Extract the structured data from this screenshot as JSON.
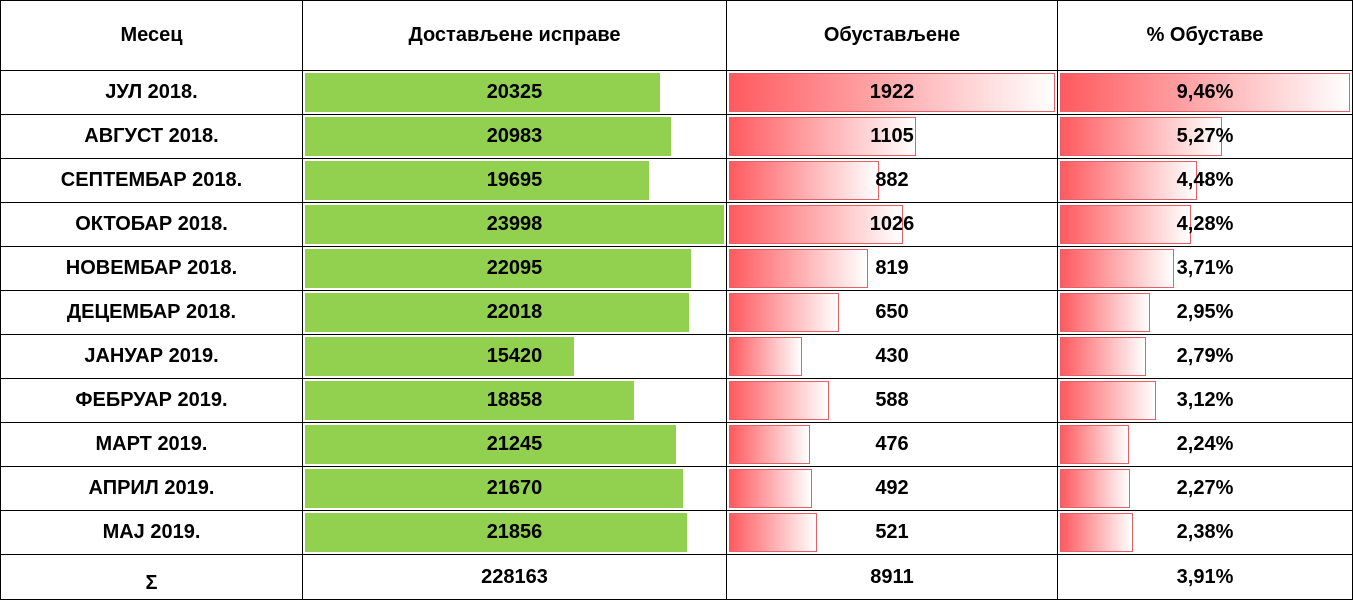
{
  "table": {
    "headers": [
      "Месец",
      "Достављене исправе",
      "Обустављене",
      "% Обуставе"
    ],
    "rows": [
      {
        "month": "ЈУЛ 2018.",
        "delivered": 20325,
        "suspended": 1922,
        "percent": {
          "value": 9.46,
          "label": "9,46%"
        }
      },
      {
        "month": "АВГУСТ 2018.",
        "delivered": 20983,
        "suspended": 1105,
        "percent": {
          "value": 5.27,
          "label": "5,27%"
        }
      },
      {
        "month": "СЕПТЕМБАР 2018.",
        "delivered": 19695,
        "suspended": 882,
        "percent": {
          "value": 4.48,
          "label": "4,48%"
        }
      },
      {
        "month": "ОКТОБАР 2018.",
        "delivered": 23998,
        "suspended": 1026,
        "percent": {
          "value": 4.28,
          "label": "4,28%"
        }
      },
      {
        "month": "НОВЕМБАР 2018.",
        "delivered": 22095,
        "suspended": 819,
        "percent": {
          "value": 3.71,
          "label": "3,71%"
        }
      },
      {
        "month": "ДЕЦЕМБАР 2018.",
        "delivered": 22018,
        "suspended": 650,
        "percent": {
          "value": 2.95,
          "label": "2,95%"
        }
      },
      {
        "month": "ЈАНУАР 2019.",
        "delivered": 15420,
        "suspended": 430,
        "percent": {
          "value": 2.79,
          "label": "2,79%"
        }
      },
      {
        "month": "ФЕБРУАР 2019.",
        "delivered": 18858,
        "suspended": 588,
        "percent": {
          "value": 3.12,
          "label": "3,12%"
        }
      },
      {
        "month": "МАРТ 2019.",
        "delivered": 21245,
        "suspended": 476,
        "percent": {
          "value": 2.24,
          "label": "2,24%"
        }
      },
      {
        "month": "АПРИЛ 2019.",
        "delivered": 21670,
        "suspended": 492,
        "percent": {
          "value": 2.27,
          "label": "2,27%"
        }
      },
      {
        "month": "МАЈ 2019.",
        "delivered": 21856,
        "suspended": 521,
        "percent": {
          "value": 2.38,
          "label": "2,38%"
        }
      }
    ],
    "total": {
      "month": "Σ",
      "delivered": 228163,
      "suspended": 8911,
      "percent": {
        "value": 3.91,
        "label": "3,91%"
      }
    }
  }
}
